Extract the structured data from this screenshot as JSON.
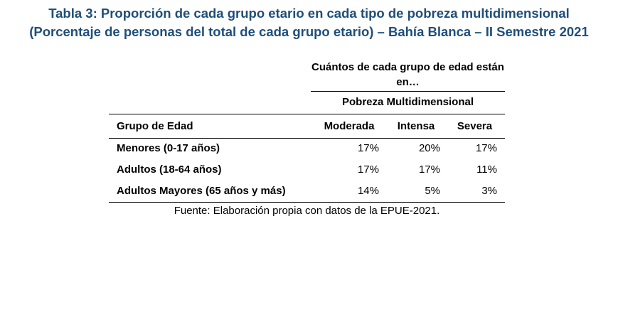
{
  "title": {
    "line1": "Tabla 3: Proporción de cada grupo etario en cada tipo de pobreza multidimensional",
    "line2": "(Porcentaje de personas del total de cada grupo etario) – Bahía Blanca – II Semestre 2021"
  },
  "table": {
    "header_group": "Cuántos de cada grupo de edad están en…",
    "header_subgroup": "Pobreza Multidimensional",
    "col_label": "Grupo de Edad",
    "columns": [
      "Moderada",
      "Intensa",
      "Severa"
    ],
    "rows": [
      {
        "label": "Menores (0-17 años)",
        "values": [
          "17%",
          "20%",
          "17%"
        ]
      },
      {
        "label": "Adultos (18-64 años)",
        "values": [
          "17%",
          "17%",
          "11%"
        ]
      },
      {
        "label": "Adultos Mayores (65 años y más)",
        "values": [
          "14%",
          "5%",
          "3%"
        ]
      }
    ]
  },
  "source": "Fuente: Elaboración propia con datos de la EPUE-2021."
}
